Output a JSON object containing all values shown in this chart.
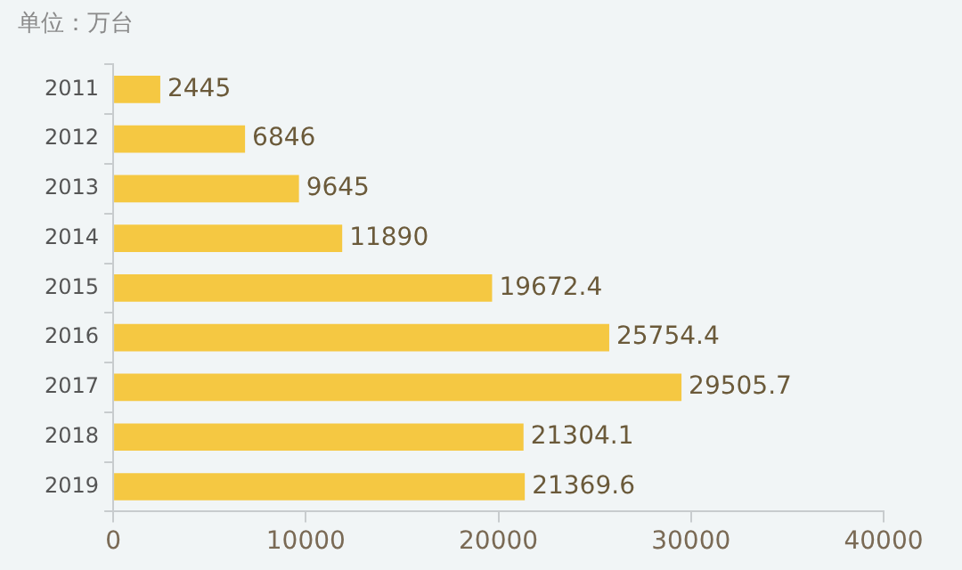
{
  "chart_data": {
    "type": "bar",
    "orientation": "horizontal",
    "title": "单位：万台",
    "categories": [
      "2011",
      "2012",
      "2013",
      "2014",
      "2015",
      "2016",
      "2017",
      "2018",
      "2019"
    ],
    "values": [
      2445,
      6846,
      9645,
      11890,
      19672.4,
      25754.4,
      29505.7,
      21304.1,
      21369.6
    ],
    "color": "#f5c842",
    "xlim": [
      0,
      40000
    ],
    "xticks": [
      0,
      10000,
      20000,
      30000,
      40000
    ],
    "grid": false,
    "legend": false,
    "data_labels": true
  }
}
